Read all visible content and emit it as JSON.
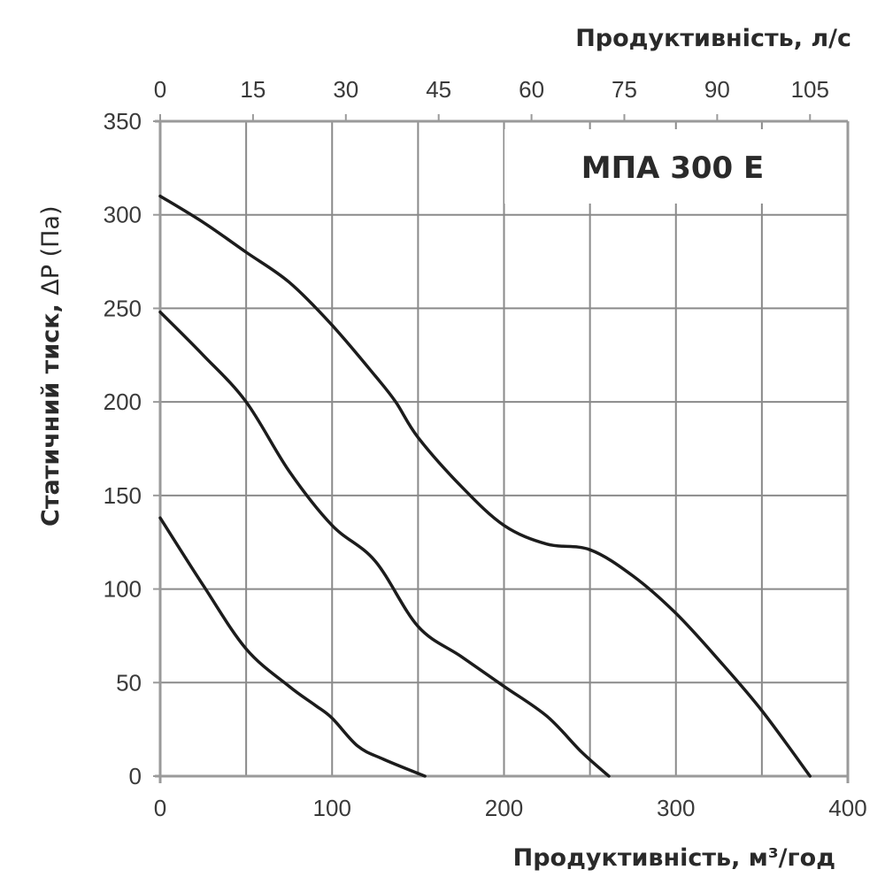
{
  "chart_data": {
    "type": "line",
    "title": "МПА 300 Е",
    "xlabel": "Продуктивність, м³/год",
    "x2label": "Продуктивність, л/с",
    "ylabel": "Статичний тиск, ΔP (Па)",
    "xlim": [
      0,
      400
    ],
    "ylim": [
      0,
      350
    ],
    "x_ticks": [
      0,
      100,
      200,
      300,
      400
    ],
    "x_gridlines": [
      0,
      50,
      100,
      150,
      200,
      250,
      300,
      350,
      400
    ],
    "x2_ticks": [
      0,
      15,
      30,
      45,
      60,
      75,
      90,
      105
    ],
    "y_ticks": [
      0,
      50,
      100,
      150,
      200,
      250,
      300,
      350
    ],
    "grid": true,
    "legend": null,
    "series": [
      {
        "name": "speed-high",
        "x": [
          0,
          25,
          50,
          75,
          100,
          125,
          137,
          150,
          175,
          200,
          225,
          250,
          275,
          300,
          325,
          350,
          378
        ],
        "y": [
          310,
          296,
          280,
          264,
          241,
          214,
          200,
          181,
          155,
          134,
          124,
          121,
          107,
          87,
          62,
          35,
          0
        ]
      },
      {
        "name": "speed-medium",
        "x": [
          0,
          25,
          50,
          75,
          100,
          125,
          150,
          175,
          200,
          225,
          245,
          261
        ],
        "y": [
          248,
          225,
          200,
          163,
          134,
          115,
          80,
          64,
          48,
          32,
          13,
          0
        ]
      },
      {
        "name": "speed-low",
        "x": [
          0,
          25,
          50,
          75,
          90,
          100,
          115,
          130,
          154
        ],
        "y": [
          138,
          102,
          68,
          48,
          38,
          31,
          16,
          9,
          0
        ]
      }
    ]
  },
  "colors": {
    "grid": "#8a8a8a",
    "axis": "#9a9a9a",
    "curve": "#1c1c1c",
    "text": "#3a3a3a"
  }
}
